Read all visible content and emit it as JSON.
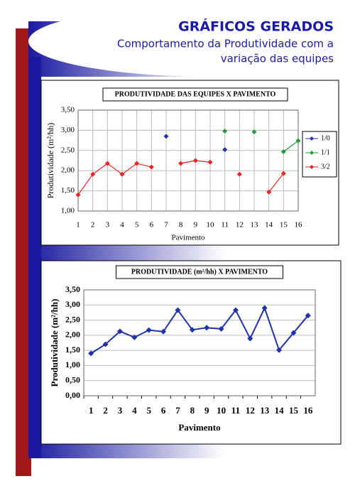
{
  "header": {
    "title": "GRÁFICOS GERADOS",
    "subtitle": [
      "Comportamento da Produtividade com a",
      "variação das equipes"
    ]
  },
  "chart_data": [
    {
      "type": "line",
      "title": "PRODUTIVIDADE DAS EQUIPES X PAVIMENTO",
      "x_label": "Pavimento",
      "y_label": "Produtividade (m²/hh)",
      "categories": [
        "1",
        "2",
        "3",
        "4",
        "5",
        "6",
        "7",
        "8",
        "9",
        "10",
        "11",
        "12",
        "13",
        "14",
        "15",
        "16"
      ],
      "series": [
        {
          "name": "1/0",
          "color": "#2233aa",
          "values": [
            null,
            null,
            null,
            null,
            null,
            null,
            2.85,
            null,
            null,
            null,
            2.52,
            null,
            null,
            null,
            null,
            null
          ]
        },
        {
          "name": "1/1",
          "color": "#22993a",
          "values": [
            null,
            null,
            null,
            null,
            null,
            null,
            null,
            null,
            null,
            null,
            2.98,
            null,
            2.96,
            null,
            2.47,
            2.74
          ]
        },
        {
          "name": "3/2",
          "color": "#ee2222",
          "values": [
            1.4,
            1.91,
            2.18,
            1.91,
            2.18,
            2.09,
            null,
            2.18,
            2.25,
            2.21,
            null,
            1.91,
            null,
            1.47,
            1.93,
            null
          ]
        }
      ],
      "ylim": [
        1,
        3.5
      ],
      "yticks": [
        {
          "value": 1,
          "label": "1,00"
        },
        {
          "value": 1.5,
          "label": "1,50"
        },
        {
          "value": 2,
          "label": "2,00"
        },
        {
          "value": 2.5,
          "label": "2,50"
        },
        {
          "value": 3,
          "label": "3,00"
        },
        {
          "value": 3.5,
          "label": "3,50"
        }
      ],
      "grid": "both",
      "legend": "right"
    },
    {
      "type": "line",
      "title": "PRODUTIVIDADE (m²/hh) X PAVIMENTO",
      "x_label": "Pavimento",
      "y_label": "Produtividade (m²/hh)",
      "categories": [
        "1",
        "2",
        "3",
        "4",
        "5",
        "6",
        "7",
        "8",
        "9",
        "10",
        "11",
        "12",
        "13",
        "14",
        "15",
        "16"
      ],
      "series": [
        {
          "color": "#2233aa",
          "values": [
            1.4,
            1.7,
            2.13,
            1.93,
            2.17,
            2.12,
            2.83,
            2.18,
            2.25,
            2.21,
            2.83,
            1.89,
            2.9,
            1.51,
            2.08,
            2.65
          ]
        }
      ],
      "ylim": [
        0,
        3.5
      ],
      "yticks": [
        {
          "value": 0,
          "label": "0,00"
        },
        {
          "value": 0.5,
          "label": "0,50"
        },
        {
          "value": 1,
          "label": "1,00"
        },
        {
          "value": 1.5,
          "label": "1,50"
        },
        {
          "value": 2,
          "label": "2,00"
        },
        {
          "value": 2.5,
          "label": "2,50"
        },
        {
          "value": 3,
          "label": "3,00"
        },
        {
          "value": 3.5,
          "label": "3,50"
        }
      ],
      "grid": "y"
    }
  ]
}
